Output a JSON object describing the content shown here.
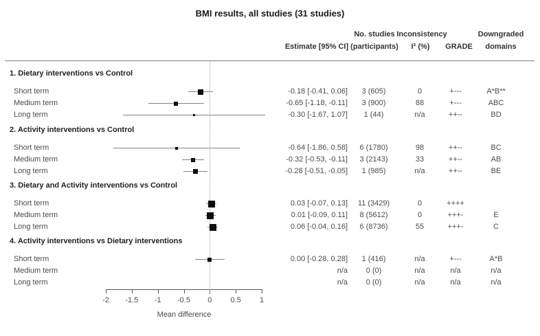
{
  "title": "BMI results, all studies (31 studies)",
  "columns": {
    "estimate": "Estimate [95% CI]",
    "n_studies_line1": "No. studies",
    "n_studies_line2": "(participants)",
    "inconsistency_line1": "Inconsistency",
    "inconsistency_line2": "I² (%)",
    "grade": "GRADE",
    "downgraded_line1": "Downgraded",
    "downgraded_line2": "domains"
  },
  "chart_data": {
    "type": "forest",
    "title": "BMI results, all studies (31 studies)",
    "xlabel": "Mean difference",
    "xlim": [
      -2,
      1
    ],
    "xticks": [
      -2,
      -1.5,
      -1,
      -0.5,
      0,
      0.5,
      1
    ],
    "xtick_labels": [
      "-2",
      "-1.5",
      "-1",
      "-0.5",
      "0",
      "0.5",
      "1"
    ],
    "reference_line": 0,
    "grid": false,
    "sections": [
      {
        "label": "1. Dietary interventions vs Control",
        "rows": [
          {
            "term": "Short term",
            "estimate_text": "-0.18 [-0.41, 0.06]",
            "n": "3 (605)",
            "i2": "0",
            "grade": "+---",
            "domains": "A*B**",
            "est": -0.18,
            "lo": -0.41,
            "hi": 0.06,
            "marker": 8
          },
          {
            "term": "Medium term",
            "estimate_text": "-0.65 [-1.18, -0.11]",
            "n": "3 (900)",
            "i2": "88",
            "grade": "+---",
            "domains": "ABC",
            "est": -0.65,
            "lo": -1.18,
            "hi": -0.11,
            "marker": 6
          },
          {
            "term": "Long term",
            "estimate_text": "-0.30 [-1.67, 1.07]",
            "n": "1 (44)",
            "i2": "n/a",
            "grade": "++--",
            "domains": "BD",
            "est": -0.3,
            "lo": -1.67,
            "hi": 1.07,
            "marker": 3
          }
        ]
      },
      {
        "label": "2. Activity interventions vs Control",
        "rows": [
          {
            "term": "Short term",
            "estimate_text": "-0.64 [-1.86, 0.58]",
            "n": "6 (1780)",
            "i2": "98",
            "grade": "++--",
            "domains": "BC",
            "est": -0.64,
            "lo": -1.86,
            "hi": 0.58,
            "marker": 4
          },
          {
            "term": "Medium term",
            "estimate_text": "-0.32 [-0.53, -0.11]",
            "n": "3 (2143)",
            "i2": "33",
            "grade": "++--",
            "domains": "AB",
            "est": -0.32,
            "lo": -0.53,
            "hi": -0.11,
            "marker": 6
          },
          {
            "term": "Long term",
            "estimate_text": "-0.28 [-0.51, -0.05]",
            "n": "1 (985)",
            "i2": "n/a",
            "grade": "++--",
            "domains": "BE",
            "est": -0.28,
            "lo": -0.51,
            "hi": -0.05,
            "marker": 7
          }
        ]
      },
      {
        "label": "3. Dietary and Activity interventions vs Control",
        "rows": [
          {
            "term": "Short term",
            "estimate_text": "0.03 [-0.07, 0.13]",
            "n": "11 (3429)",
            "i2": "0",
            "grade": "++++",
            "domains": "",
            "est": 0.03,
            "lo": -0.07,
            "hi": 0.13,
            "marker": 10
          },
          {
            "term": "Medium term",
            "estimate_text": "0.01 [-0.09, 0.11]",
            "n": "8 (5612)",
            "i2": "0",
            "grade": "+++-",
            "domains": "E",
            "est": 0.01,
            "lo": -0.09,
            "hi": 0.11,
            "marker": 10
          },
          {
            "term": "Long term",
            "estimate_text": "0.06 [-0.04, 0.16]",
            "n": "6 (8736)",
            "i2": "55",
            "grade": "+++-",
            "domains": "C",
            "est": 0.06,
            "lo": -0.04,
            "hi": 0.16,
            "marker": 10
          }
        ]
      },
      {
        "label": "4. Activity interventions vs Dietary interventions",
        "rows": [
          {
            "term": "Short term",
            "estimate_text": "0.00 [-0.28, 0.28]",
            "n": "1 (416)",
            "i2": "n/a",
            "grade": "+---",
            "domains": "A*B",
            "est": 0.0,
            "lo": -0.28,
            "hi": 0.28,
            "marker": 6
          },
          {
            "term": "Medium term",
            "estimate_text": "n/a",
            "n": "0 (0)",
            "i2": "n/a",
            "grade": "n/a",
            "domains": "n/a",
            "est": null,
            "lo": null,
            "hi": null,
            "marker": 0
          },
          {
            "term": "Long term",
            "estimate_text": "n/a",
            "n": "0 (0)",
            "i2": "n/a",
            "grade": "n/a",
            "domains": "n/a",
            "est": null,
            "lo": null,
            "hi": null,
            "marker": 0
          }
        ]
      }
    ]
  }
}
